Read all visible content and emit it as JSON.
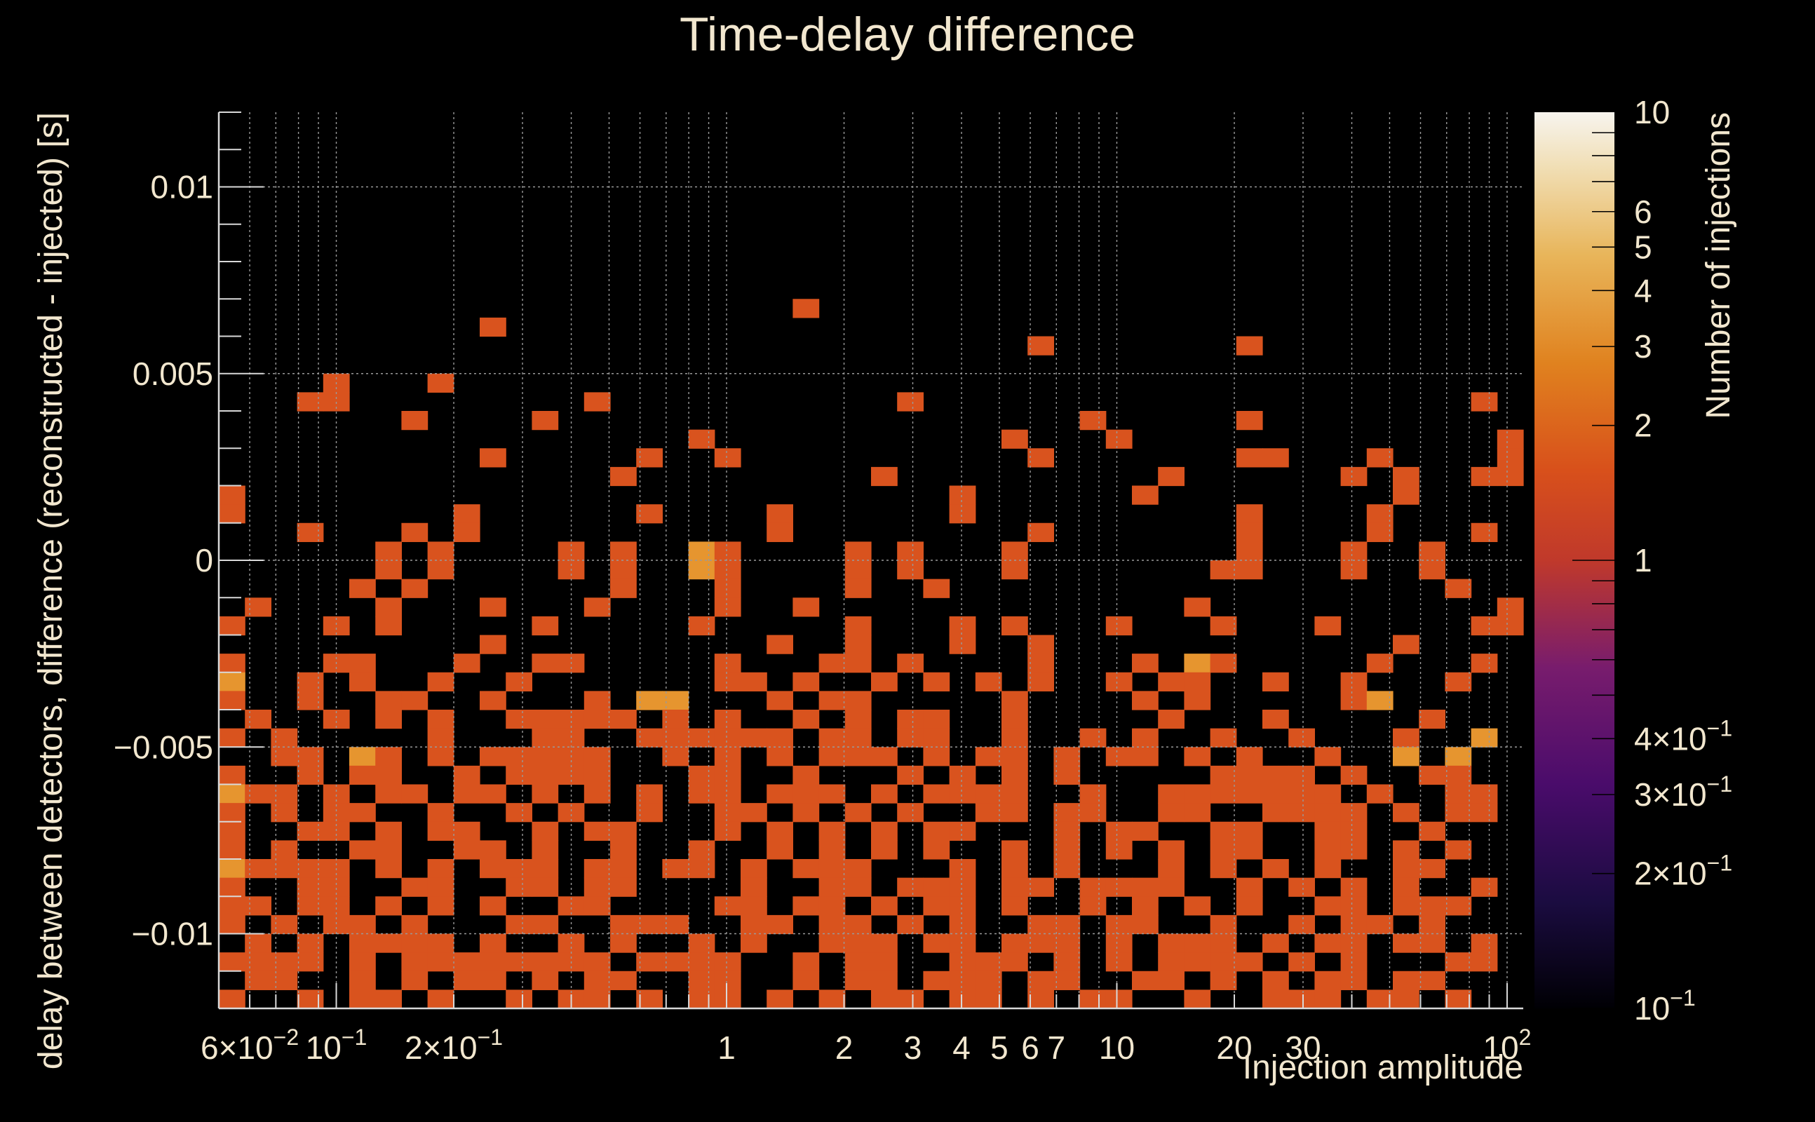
{
  "chart_data": {
    "type": "heatmap",
    "title": "Time-delay difference",
    "xlabel": "Injection amplitude",
    "ylabel": "delay between detectors, difference (reconstructed - injected) [s]",
    "zlabel": "Number of injections",
    "x_scale": "log",
    "xlim": [
      0.05,
      110
    ],
    "ylim": [
      -0.012,
      0.012
    ],
    "zlim": [
      0.1,
      10
    ],
    "z_scale": "log",
    "grid": true,
    "x_tick_labels": [
      {
        "value": 0.06,
        "base": "6×10",
        "exp": "−2"
      },
      {
        "value": 0.1,
        "base": "10",
        "exp": "−1"
      },
      {
        "value": 0.2,
        "base": "2×10",
        "exp": "−1"
      },
      {
        "value": 1,
        "base": "1",
        "exp": ""
      },
      {
        "value": 2,
        "base": "2",
        "exp": ""
      },
      {
        "value": 3,
        "base": "3",
        "exp": ""
      },
      {
        "value": 4,
        "base": "4",
        "exp": ""
      },
      {
        "value": 5,
        "base": "5",
        "exp": ""
      },
      {
        "value": 6,
        "base": "6",
        "exp": ""
      },
      {
        "value": 7,
        "base": "7",
        "exp": ""
      },
      {
        "value": 10,
        "base": "10",
        "exp": ""
      },
      {
        "value": 20,
        "base": "20",
        "exp": ""
      },
      {
        "value": 30,
        "base": "30",
        "exp": ""
      },
      {
        "value": 100,
        "base": "10",
        "exp": "2"
      }
    ],
    "y_tick_labels": [
      {
        "value": 0.01,
        "label": "0.01"
      },
      {
        "value": 0.005,
        "label": "0.005"
      },
      {
        "value": 0,
        "label": "0"
      },
      {
        "value": -0.005,
        "label": "−0.005"
      },
      {
        "value": -0.01,
        "label": "−0.01"
      }
    ],
    "z_tick_labels": [
      {
        "value": 10,
        "base": "10",
        "exp": ""
      },
      {
        "value": 6,
        "base": "6",
        "exp": ""
      },
      {
        "value": 5,
        "base": "5",
        "exp": ""
      },
      {
        "value": 4,
        "base": "4",
        "exp": ""
      },
      {
        "value": 3,
        "base": "3",
        "exp": ""
      },
      {
        "value": 2,
        "base": "2",
        "exp": ""
      },
      {
        "value": 1,
        "base": "1",
        "exp": ""
      },
      {
        "value": 0.4,
        "base": "4×10",
        "exp": "−1"
      },
      {
        "value": 0.3,
        "base": "3×10",
        "exp": "−1"
      },
      {
        "value": 0.2,
        "base": "2×10",
        "exp": "−1"
      },
      {
        "value": 0.1,
        "base": "10",
        "exp": "−1"
      }
    ],
    "bins": {
      "x_count": 50,
      "y_count": 48,
      "encoding": "rows from y=0.012 (top) to y=-0.012 (bottom); one char per x bin from low to high; '.' = 0, digits = count",
      "rows": [
        "..................................................",
        "..................................................",
        "..................................................",
        "..................................................",
        "..................................................",
        "..................................................",
        "..................................................",
        "..................................................",
        "..................................................",
        "..................................................",
        "......................1...........................",
        "..........1.......................................",
        "...............................1.......1..........",
        "..................................................",
        "....1...1.........................................",
        "...11.........1...........1.....................1.",
        ".......1....1....................1.....1..........",
        "..................1...........1...1..............1",
        "..........1.....1..1...........1.......11...1....1",
        "...............1.........1..........1......1.1..11",
        "1...........................1......1.........1....",
        "1........1......1....1......1..........1....1.....",
        "...1...1.1...........1.........1.......1....1...1.",
        "......1.1....1.1..21....1.1...1........1...1..1...",
        "......1.1....1.1..21....1.1...1.......11...1..1...",
        ".....1.1.......1...1....1..1...................1..",
        ".1....1...1...1....1..1..............1...........1",
        "1...1.1.....1.....1.....1...1.1...1...1...1.....11",
        "..........1..........1..1...1..1.............1...",
        "1...11...1..11.....1...11.1....1...1.21.....1...1",
        "2..1.1..1..1.......11.1..1.1.1.1..1.11..1..1...1.",
        "1..1..11..1...1.22...1.11.....1....1.1.....12....",
        ".1..1.1.1..11111.1.1..1.1.11..1.....1...1.....1..",
        "1.1.....1...11..111111.11.11..1..1.1..1..1...1..2",
        "..11.21.1.11111..1.1.1.111.1.11.1.11.1.1..1..2.2.",
        "1..1.11..1.1111...11..1...1.1.1.1.....1111.1..11.",
        "211.1.11.11.1.1.1.11.111.1.1111..1..1111111.1..11",
        "1.1.11..1..1.1..1..11.1.1.1..11.11..11..1111.1.11",
        "1..11.1.11..1.11...1.1.1.1.11...1.11..11..11..1..",
        "1.1..11..11.1..1..1..1.1.1.1..1.1.1.1.11..11.1.1.",
        "21111.1.1.111.11.11.1.111...1.1.1...1.1.1.1..11..",
        "1..11..11..11.11....1..11.111.11.1111..1.1.1.1..1",
        "11.11.1.1.1..11....11.11.1.11.1..1.1.1.1..11.111.",
        "1.1.11.1...11..111..11.11.1.1..11.11..1..1.11.1..",
        ".1.1.1111.1..1.1..1.1..111.11.111.1.111.1.11.11.1",
        "1111.1.11111111.1111..1.11..111.1.1.1111.1.1...11",
        ".11..1.1.11.1.11..11..1.11.111.11..11.1.1.11.11..",
        "1..1.11.1..1.11.1.11.1.1.11.11.1.11..1..111.11.1."
      ]
    }
  },
  "colors": {
    "background": "#000000",
    "text": "#f2e7cf",
    "axis": "#d9d9d9",
    "grid": "#9a9a9a",
    "palette": [
      "#000004",
      "#1b0c41",
      "#4a0c6b",
      "#781c6d",
      "#a52c60",
      "#cf4446",
      "#ed6925",
      "#fb9b06",
      "#f7d13d",
      "#fcffa4",
      "#f5f0e6"
    ]
  }
}
